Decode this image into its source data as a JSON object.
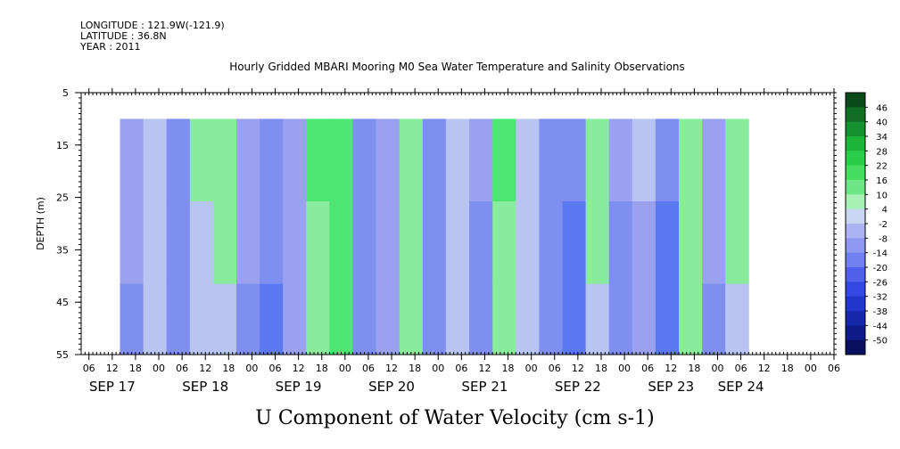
{
  "header": {
    "longitude": "LONGITUDE : 121.9W(-121.9)",
    "latitude": "LATITUDE : 36.8N",
    "year": "YEAR : 2011"
  },
  "chart_data": {
    "type": "heatmap",
    "title": "Hourly Gridded MBARI Mooring M0 Sea Water Temperature and Salinity Observations",
    "xlabel": "U Component of Water Velocity (cm s-1)",
    "ylabel": "DEPTH (m)",
    "yticks": [
      "5",
      "15",
      "25",
      "35",
      "45",
      "55"
    ],
    "ylim": [
      5,
      55
    ],
    "y_inverted": true,
    "hour_ticks": [
      "06",
      "12",
      "18",
      "00",
      "06",
      "12",
      "18",
      "00",
      "06",
      "12",
      "18",
      "00",
      "06",
      "12",
      "18",
      "00",
      "06",
      "12",
      "18",
      "00",
      "06",
      "12",
      "18",
      "00",
      "06",
      "12",
      "18",
      "00",
      "06",
      "12",
      "18",
      "00",
      "06"
    ],
    "date_labels": [
      "SEP 17",
      "SEP 18",
      "SEP 19",
      "SEP 20",
      "SEP 21",
      "SEP 22",
      "SEP 23",
      "SEP 24"
    ],
    "data_depth_range": [
      10,
      55
    ],
    "colorbar": {
      "levels": [
        "46",
        "40",
        "34",
        "28",
        "22",
        "16",
        "10",
        "4",
        "-2",
        "-8",
        "-14",
        "-20",
        "-26",
        "-32",
        "-38",
        "-44",
        "-50"
      ]
    },
    "column_velocity_profile": [
      {
        "time": "SEP 17 14:00",
        "value": -6
      },
      {
        "time": "SEP 17 20:00",
        "value": 2
      },
      {
        "time": "SEP 18 02:00",
        "value": -10
      },
      {
        "time": "SEP 18 08:00",
        "value": 4
      },
      {
        "time": "SEP 18 14:00",
        "value": 6
      },
      {
        "time": "SEP 18 20:00",
        "value": -6
      },
      {
        "time": "SEP 19 02:00",
        "value": -12
      },
      {
        "time": "SEP 19 08:00",
        "value": -4
      },
      {
        "time": "SEP 19 14:00",
        "value": 10
      },
      {
        "time": "SEP 19 20:00",
        "value": 14
      },
      {
        "time": "SEP 20 02:00",
        "value": -10
      },
      {
        "time": "SEP 20 08:00",
        "value": -4
      },
      {
        "time": "SEP 20 14:00",
        "value": 8
      },
      {
        "time": "SEP 20 20:00",
        "value": -10
      },
      {
        "time": "SEP 21 02:00",
        "value": 2
      },
      {
        "time": "SEP 21 08:00",
        "value": -8
      },
      {
        "time": "SEP 21 14:00",
        "value": 10
      },
      {
        "time": "SEP 21 20:00",
        "value": 2
      },
      {
        "time": "SEP 22 02:00",
        "value": -10
      },
      {
        "time": "SEP 22 08:00",
        "value": -14
      },
      {
        "time": "SEP 22 14:00",
        "value": 6
      },
      {
        "time": "SEP 22 20:00",
        "value": -8
      },
      {
        "time": "SEP 23 02:00",
        "value": -2
      },
      {
        "time": "SEP 23 08:00",
        "value": -14
      },
      {
        "time": "SEP 23 14:00",
        "value": 8
      },
      {
        "time": "SEP 23 20:00",
        "value": -6
      },
      {
        "time": "SEP 24 02:00",
        "value": 6
      }
    ]
  },
  "colors": {
    "plot_background": "#ffffff",
    "frame": "#000000"
  }
}
